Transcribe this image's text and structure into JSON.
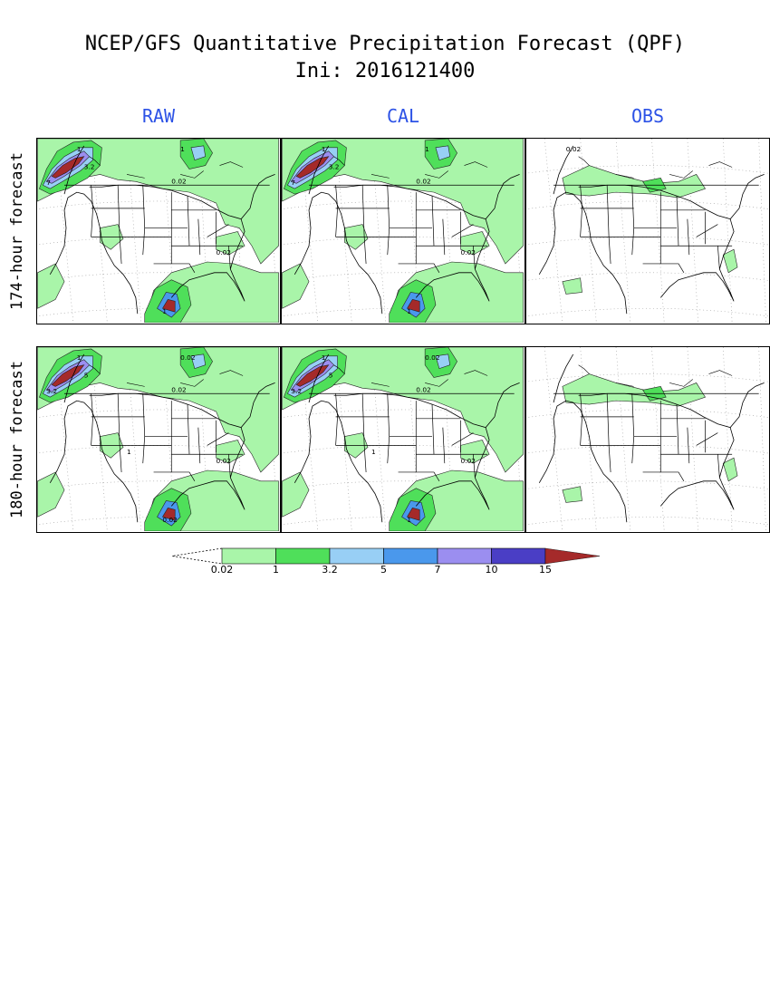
{
  "title": {
    "line1": "NCEP/GFS Quantitative Precipitation Forecast (QPF)",
    "line2": "Ini: 2016121400"
  },
  "columns": [
    "RAW",
    "CAL",
    "OBS"
  ],
  "rows": [
    "174-hour forecast",
    "180-hour forecast"
  ],
  "panel_labels": {
    "raw174": [
      "1",
      "3.2",
      "7",
      "0.02",
      "0.02",
      "1",
      "1"
    ],
    "cal174": [
      "1",
      "3.2",
      "7",
      "0.02",
      "0.02",
      "1",
      "1"
    ],
    "obs174": [
      "0.02"
    ],
    "raw180": [
      "1",
      "5",
      "3.2",
      "0.02",
      "0.02",
      "0.02",
      "0.02",
      "1"
    ],
    "cal180": [
      "1",
      "5",
      "3.2",
      "0.02",
      "0.02",
      "0.02",
      "1",
      "1"
    ],
    "obs180": []
  },
  "colorbar": {
    "ticks": [
      "0.02",
      "1",
      "3.2",
      "5",
      "7",
      "10",
      "15"
    ],
    "colors": [
      "#a9f5a9",
      "#4fdf5a",
      "#98cff5",
      "#4a98ec",
      "#9b8ef0",
      "#4a3ec5",
      "#a52a2a"
    ]
  }
}
